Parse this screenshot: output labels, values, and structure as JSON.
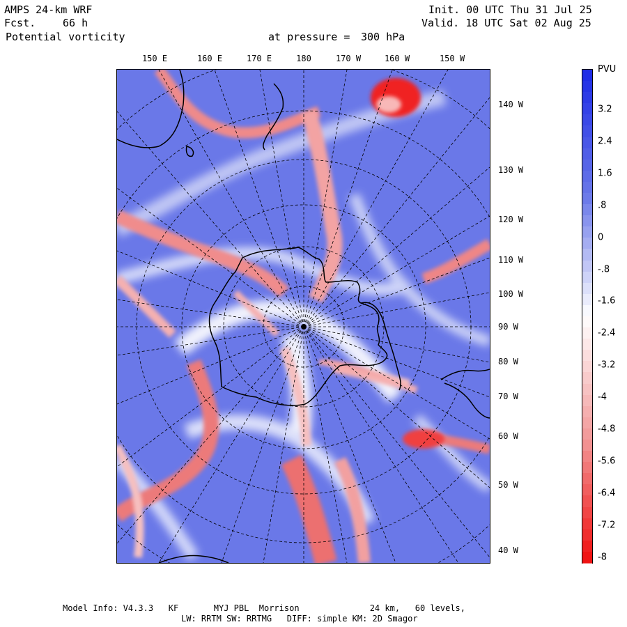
{
  "header": {
    "model": "AMPS 24-km WRF",
    "fcst_label": "Fcst.",
    "fcst_value": "66 h",
    "field": "Potential vorticity",
    "pressure_label": "at pressure =",
    "pressure_value": "300 hPa",
    "init": "Init. 00 UTC Thu 31 Jul 25",
    "valid": "Valid. 18 UTC Sat 02 Aug 25"
  },
  "map": {
    "lon_labels": [
      "150 E",
      "160 E",
      "170 E",
      "180",
      "170 W",
      "160 W",
      "150 W"
    ],
    "lat_side_labels": [
      "140 W",
      "130 W",
      "120 W",
      "110 W",
      "100 W",
      "90 W",
      "80 W",
      "70 W",
      "60 W",
      "50 W",
      "40 W"
    ]
  },
  "colorbar": {
    "units": "PVU",
    "ticks": [
      "3.2",
      "2.4",
      "1.6",
      ".8",
      "0",
      "-.8",
      "-1.6",
      "-2.4",
      "-3.2",
      "-4",
      "-4.8",
      "-5.6",
      "-6.4",
      "-7.2",
      "-8"
    ],
    "colors": {
      "max": "#1f2de6",
      "mid_blue": "#6a78e8",
      "white": "#ffffff",
      "mid_red": "#f29a9a",
      "min": "#f01414"
    }
  },
  "footer": {
    "line1": "Model Info: V4.3.3   KF       MYJ PBL  Morrison              24 km,   60 levels,",
    "line2": "LW: RRTM SW: RRTMG   DIFF: simple KM: 2D Smagor"
  }
}
